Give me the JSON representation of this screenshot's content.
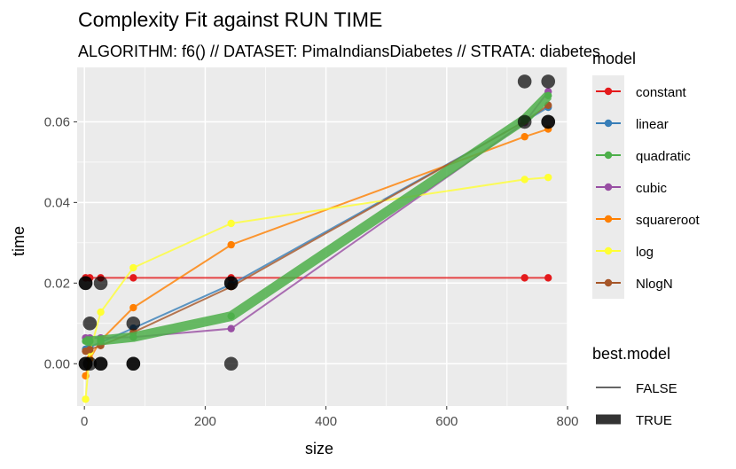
{
  "chart_data": {
    "type": "line",
    "title": "Complexity Fit against RUN TIME",
    "subtitle": "ALGORITHM: f6() // DATASET: PimaIndiansDiabetes // STRATA: diabetes",
    "xlabel": "size",
    "ylabel": "time",
    "xlim": [
      -12,
      800
    ],
    "ylim": [
      -0.0105,
      0.0735
    ],
    "x_ticks": [
      0,
      200,
      400,
      600,
      800
    ],
    "y_ticks": [
      0.0,
      0.02,
      0.04,
      0.06
    ],
    "y_tick_labels": [
      "0.00",
      "0.02",
      "0.04",
      "0.06"
    ],
    "grid": true,
    "observations": {
      "x": [
        2,
        2,
        2,
        2,
        9,
        9,
        27,
        27,
        27,
        81,
        81,
        81,
        243,
        243,
        243,
        729,
        729,
        768,
        768,
        768
      ],
      "y": [
        0.0,
        0.02,
        0.0,
        0.02,
        0.0,
        0.01,
        0.0,
        0.02,
        0.0,
        0.0,
        0.01,
        0.0,
        0.0,
        0.02,
        0.02,
        0.07,
        0.06,
        0.07,
        0.06,
        0.06
      ]
    },
    "series": [
      {
        "name": "constant",
        "color": "#E41A1C",
        "best": false,
        "x": [
          2,
          9,
          27,
          81,
          243,
          729,
          768
        ],
        "y": [
          0.0213,
          0.0213,
          0.0213,
          0.0213,
          0.0213,
          0.0213,
          0.0213
        ]
      },
      {
        "name": "linear",
        "color": "#377EB8",
        "best": false,
        "x": [
          2,
          9,
          27,
          81,
          243,
          729,
          768
        ],
        "y": [
          0.0036,
          0.0041,
          0.0053,
          0.0088,
          0.0197,
          0.0601,
          0.0636
        ]
      },
      {
        "name": "cubic",
        "color": "#984EA3",
        "best": false,
        "x": [
          2,
          9,
          27,
          81,
          243,
          729,
          768
        ],
        "y": [
          0.0064,
          0.0064,
          0.0064,
          0.0066,
          0.0087,
          0.0598,
          0.0675
        ]
      },
      {
        "name": "squareroot",
        "color": "#FF7F00",
        "best": false,
        "x": [
          2,
          9,
          27,
          81,
          243,
          729,
          768
        ],
        "y": [
          -0.003,
          0.0012,
          0.0058,
          0.0139,
          0.0295,
          0.0563,
          0.0582
        ]
      },
      {
        "name": "log",
        "color": "#FFFF33",
        "best": false,
        "x": [
          2,
          9,
          27,
          81,
          243,
          729,
          768
        ],
        "y": [
          -0.0088,
          0.0029,
          0.0128,
          0.0238,
          0.0348,
          0.0457,
          0.0462
        ]
      },
      {
        "name": "NlogN",
        "color": "#A65628",
        "best": false,
        "x": [
          2,
          9,
          27,
          81,
          243,
          729,
          768
        ],
        "y": [
          0.0031,
          0.0035,
          0.0045,
          0.0078,
          0.0191,
          0.0601,
          0.0641
        ]
      },
      {
        "name": "quadratic",
        "color": "#4DAF4A",
        "best": true,
        "x": [
          2,
          9,
          27,
          81,
          243,
          729,
          768
        ],
        "y": [
          0.0056,
          0.0056,
          0.0058,
          0.0066,
          0.0118,
          0.0606,
          0.0665
        ]
      }
    ],
    "legend": {
      "position": "right",
      "model_title": "model",
      "model_entries": [
        {
          "name": "constant",
          "color": "#E41A1C"
        },
        {
          "name": "linear",
          "color": "#377EB8"
        },
        {
          "name": "quadratic",
          "color": "#4DAF4A"
        },
        {
          "name": "cubic",
          "color": "#984EA3"
        },
        {
          "name": "squareroot",
          "color": "#FF7F00"
        },
        {
          "name": "log",
          "color": "#FFFF33"
        },
        {
          "name": "NlogN",
          "color": "#A65628"
        }
      ],
      "best_title": "best.model",
      "best_entries": [
        "FALSE",
        "TRUE"
      ]
    },
    "colors": {
      "panel": "#EBEBEB",
      "grid": "#FFFFFF",
      "observation": "#000000",
      "tick": "#4D4D4D"
    }
  }
}
